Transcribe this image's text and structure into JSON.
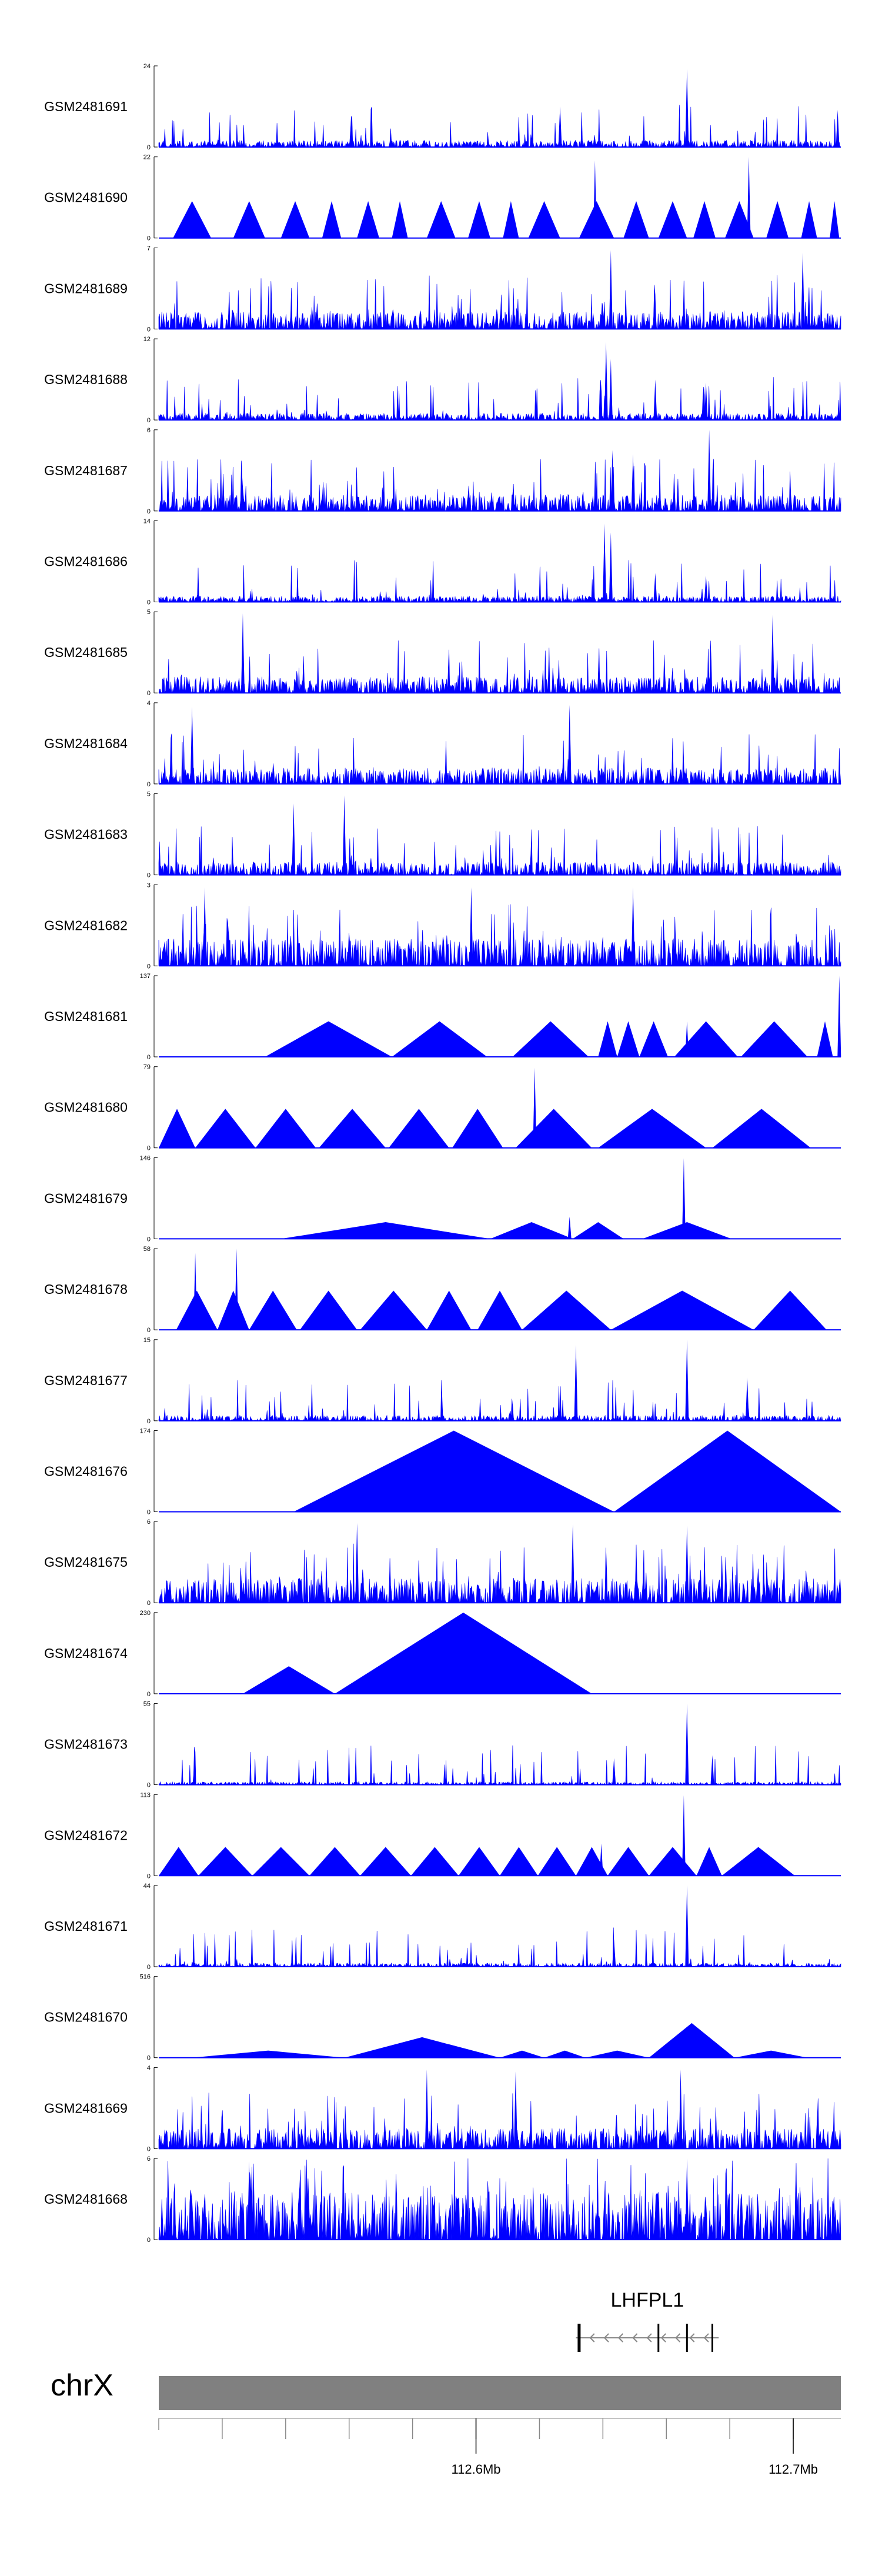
{
  "chart_data": {
    "type": "area",
    "title": "",
    "chromosome": "chrX",
    "x_unit": "Mb",
    "xlim": [
      112.5,
      112.715
    ],
    "tick_labels": [
      {
        "pos": 112.6,
        "label": "112.6Mb"
      },
      {
        "pos": 112.7,
        "label": "112.7Mb"
      }
    ],
    "minor_ticks": [
      112.52,
      112.54,
      112.56,
      112.58,
      112.6,
      112.62,
      112.64,
      112.66,
      112.68,
      112.7
    ],
    "colors": {
      "signal": "#0000ff",
      "ideogram": "#808080",
      "axis": "#000000",
      "gene": "#888888"
    },
    "gene": {
      "name": "LHFPL1",
      "strand": "-",
      "start": 112.6315,
      "end": 112.6765,
      "exons": [
        112.6325,
        112.6575,
        112.6665,
        112.6745
      ]
    },
    "series": [
      {
        "name": "GSM2481691",
        "ylim": [
          0,
          24
        ],
        "type": "spiky",
        "baseline": 2,
        "peaks": [
          [
            112.6265,
            12
          ],
          [
            112.6665,
            23
          ],
          [
            112.714,
            11
          ]
        ]
      },
      {
        "name": "GSM2481690",
        "ylim": [
          0,
          22
        ],
        "type": "sparse",
        "baseline": 10,
        "peaks": [
          [
            112.6375,
            21
          ],
          [
            112.686,
            22
          ]
        ]
      },
      {
        "name": "GSM2481689",
        "ylim": [
          0,
          7
        ],
        "type": "spiky",
        "baseline": 1.5,
        "peaks": [
          [
            112.6425,
            6.8
          ],
          [
            112.703,
            6.6
          ]
        ]
      },
      {
        "name": "GSM2481688",
        "ylim": [
          0,
          12
        ],
        "type": "spiky",
        "baseline": 1,
        "peaks": [
          [
            112.641,
            11.5
          ],
          [
            112.6425,
            9
          ],
          [
            112.6565,
            6
          ],
          [
            112.6725,
            5.5
          ]
        ]
      },
      {
        "name": "GSM2481687",
        "ylim": [
          0,
          6
        ],
        "type": "spiky",
        "baseline": 1.2,
        "peaks": [
          [
            112.643,
            4.5
          ],
          [
            112.6495,
            4.2
          ],
          [
            112.6735,
            6
          ]
        ]
      },
      {
        "name": "GSM2481686",
        "ylim": [
          0,
          14
        ],
        "type": "spiky",
        "baseline": 1,
        "peaks": [
          [
            112.6405,
            13.5
          ],
          [
            112.6425,
            12
          ],
          [
            112.6565,
            5
          ],
          [
            112.6725,
            4.5
          ]
        ]
      },
      {
        "name": "GSM2481685",
        "ylim": [
          0,
          5
        ],
        "type": "spiky",
        "baseline": 1,
        "peaks": [
          [
            112.5265,
            4.9
          ],
          [
            112.6935,
            4.8
          ]
        ]
      },
      {
        "name": "GSM2481684",
        "ylim": [
          0,
          4
        ],
        "type": "spiky",
        "baseline": 0.8,
        "peaks": [
          [
            112.5105,
            3.8
          ],
          [
            112.6295,
            3.9
          ]
        ]
      },
      {
        "name": "GSM2481683",
        "ylim": [
          0,
          5
        ],
        "type": "spiky",
        "baseline": 0.8,
        "peaks": [
          [
            112.5585,
            4.9
          ],
          [
            112.5425,
            4.4
          ]
        ]
      },
      {
        "name": "GSM2481682",
        "ylim": [
          0,
          3
        ],
        "type": "spiky",
        "baseline": 1,
        "peaks": [
          [
            112.5145,
            2.9
          ],
          [
            112.5985,
            2.9
          ],
          [
            112.6495,
            2.9
          ]
        ]
      },
      {
        "name": "GSM2481681",
        "ylim": [
          0,
          137
        ],
        "type": "sparse",
        "baseline": 60,
        "peaks": [
          [
            112.6665,
            60
          ],
          [
            112.7145,
            137
          ]
        ]
      },
      {
        "name": "GSM2481680",
        "ylim": [
          0,
          79
        ],
        "type": "sparse",
        "baseline": 38,
        "peaks": [
          [
            112.6185,
            78
          ]
        ]
      },
      {
        "name": "GSM2481679",
        "ylim": [
          0,
          146
        ],
        "type": "sparse",
        "baseline": 30,
        "peaks": [
          [
            112.6655,
            145
          ],
          [
            112.6295,
            40
          ]
        ]
      },
      {
        "name": "GSM2481678",
        "ylim": [
          0,
          58
        ],
        "type": "sparse",
        "baseline": 28,
        "peaks": [
          [
            112.5115,
            55
          ],
          [
            112.5245,
            58
          ]
        ]
      },
      {
        "name": "GSM2481677",
        "ylim": [
          0,
          15
        ],
        "type": "spiky",
        "baseline": 1,
        "peaks": [
          [
            112.6315,
            14
          ],
          [
            112.6665,
            15
          ],
          [
            112.6855,
            8
          ]
        ]
      },
      {
        "name": "GSM2481676",
        "ylim": [
          0,
          174
        ],
        "type": "sparse",
        "baseline": 0,
        "peaks": []
      },
      {
        "name": "GSM2481675",
        "ylim": [
          0,
          6
        ],
        "type": "spiky",
        "baseline": 1.8,
        "peaks": [
          [
            112.5625,
            5.9
          ],
          [
            112.6305,
            5.8
          ],
          [
            112.6665,
            5.7
          ]
        ]
      },
      {
        "name": "GSM2481674",
        "ylim": [
          0,
          230
        ],
        "type": "sparse",
        "baseline": 0,
        "peaks": []
      },
      {
        "name": "GSM2481673",
        "ylim": [
          0,
          55
        ],
        "type": "spiky",
        "baseline": 2,
        "peaks": [
          [
            112.6665,
            55
          ],
          [
            112.6435,
            18
          ],
          [
            112.6745,
            20
          ]
        ]
      },
      {
        "name": "GSM2481672",
        "ylim": [
          0,
          113
        ],
        "type": "sparse",
        "baseline": 40,
        "peaks": [
          [
            112.6655,
            112
          ],
          [
            112.6395,
            45
          ]
        ]
      },
      {
        "name": "GSM2481671",
        "ylim": [
          0,
          44
        ],
        "type": "spiky",
        "baseline": 2,
        "peaks": [
          [
            112.6665,
            44
          ],
          [
            112.6435,
            15
          ]
        ]
      },
      {
        "name": "GSM2481670",
        "ylim": [
          0,
          516
        ],
        "type": "sparse",
        "baseline": 0,
        "peaks": []
      },
      {
        "name": "GSM2481669",
        "ylim": [
          0,
          4
        ],
        "type": "spiky",
        "baseline": 1,
        "peaks": [
          [
            112.5845,
            3.9
          ],
          [
            112.6125,
            3.8
          ],
          [
            112.6645,
            3.9
          ]
        ]
      },
      {
        "name": "GSM2481668",
        "ylim": [
          0,
          6
        ],
        "type": "spiky",
        "baseline": 3.5,
        "peaks": [
          [
            112.6665,
            6
          ],
          [
            112.5285,
            5.8
          ]
        ]
      }
    ],
    "sparse_shapes": {
      "GSM2481690": [
        [
          112.5045,
          112.5165,
          10
        ],
        [
          112.5235,
          112.5335,
          10
        ],
        [
          112.5385,
          112.5475,
          10
        ],
        [
          112.5515,
          112.5575,
          10
        ],
        [
          112.5625,
          112.5695,
          10
        ],
        [
          112.5735,
          112.5785,
          10
        ],
        [
          112.5845,
          112.5935,
          10
        ],
        [
          112.5975,
          112.6045,
          10
        ],
        [
          112.6085,
          112.6135,
          10
        ],
        [
          112.6165,
          112.6265,
          10
        ],
        [
          112.6325,
          112.6435,
          10
        ],
        [
          112.6465,
          112.6545,
          10
        ],
        [
          112.6575,
          112.6665,
          10
        ],
        [
          112.6685,
          112.6755,
          10
        ],
        [
          112.6785,
          112.6875,
          10
        ],
        [
          112.6915,
          112.6985,
          10
        ],
        [
          112.7025,
          112.7075,
          10
        ],
        [
          112.7115,
          112.7145,
          10
        ]
      ],
      "GSM2481681": [
        [
          112.5335,
          112.5735,
          60
        ],
        [
          112.5735,
          112.6035,
          60
        ],
        [
          112.6115,
          112.6355,
          60
        ],
        [
          112.6385,
          112.6445,
          60
        ],
        [
          112.6445,
          112.6515,
          60
        ],
        [
          112.6515,
          112.6605,
          60
        ],
        [
          112.6625,
          112.6825,
          60
        ],
        [
          112.6835,
          112.7045,
          60
        ],
        [
          112.7075,
          112.7125,
          60
        ]
      ],
      "GSM2481680": [
        [
          112.5,
          112.5115,
          38
        ],
        [
          112.5115,
          112.5305,
          38
        ],
        [
          112.5305,
          112.5495,
          38
        ],
        [
          112.5505,
          112.5715,
          38
        ],
        [
          112.5725,
          112.5915,
          38
        ],
        [
          112.5925,
          112.6085,
          38
        ],
        [
          112.6125,
          112.6365,
          38
        ],
        [
          112.6385,
          112.6725,
          38
        ],
        [
          112.6745,
          112.7055,
          38
        ]
      ],
      "GSM2481679": [
        [
          112.5385,
          112.6045,
          30
        ],
        [
          112.6045,
          112.6305,
          30
        ],
        [
          112.6305,
          112.6465,
          30
        ],
        [
          112.6525,
          112.6805,
          30
        ]
      ],
      "GSM2481678": [
        [
          112.5055,
          112.5185,
          28
        ],
        [
          112.5185,
          112.5285,
          28
        ],
        [
          112.5285,
          112.5435,
          28
        ],
        [
          112.5445,
          112.5625,
          28
        ],
        [
          112.5635,
          112.5845,
          28
        ],
        [
          112.5845,
          112.5985,
          28
        ],
        [
          112.6005,
          112.6145,
          28
        ],
        [
          112.6145,
          112.6425,
          28
        ],
        [
          112.6425,
          112.6875,
          28
        ],
        [
          112.6875,
          112.7105,
          28
        ]
      ],
      "GSM2481676": [
        [
          112.5425,
          112.6435,
          174
        ],
        [
          112.6435,
          112.715,
          174
        ]
      ],
      "GSM2481674": [
        [
          112.5265,
          112.5555,
          78
        ],
        [
          112.5555,
          112.6365,
          230
        ]
      ],
      "GSM2481672": [
        [
          112.5,
          112.5125,
          40
        ],
        [
          112.5125,
          112.5295,
          40
        ],
        [
          112.5295,
          112.5475,
          40
        ],
        [
          112.5475,
          112.5635,
          40
        ],
        [
          112.5635,
          112.5795,
          40
        ],
        [
          112.5795,
          112.5945,
          40
        ],
        [
          112.5945,
          112.6075,
          40
        ],
        [
          112.6075,
          112.6195,
          40
        ],
        [
          112.6195,
          112.6315,
          40
        ],
        [
          112.6315,
          112.6415,
          40
        ],
        [
          112.6415,
          112.6545,
          40
        ],
        [
          112.6545,
          112.6695,
          40
        ],
        [
          112.6695,
          112.6775,
          40
        ],
        [
          112.6775,
          112.7005,
          40
        ]
      ],
      "GSM2481670": [
        [
          112.5105,
          112.5585,
          45
        ],
        [
          112.5585,
          112.6075,
          130
        ],
        [
          112.6075,
          112.6215,
          45
        ],
        [
          112.6215,
          112.6345,
          45
        ],
        [
          112.6345,
          112.6545,
          45
        ],
        [
          112.6545,
          112.6815,
          220
        ],
        [
          112.6815,
          112.7045,
          45
        ]
      ]
    }
  }
}
